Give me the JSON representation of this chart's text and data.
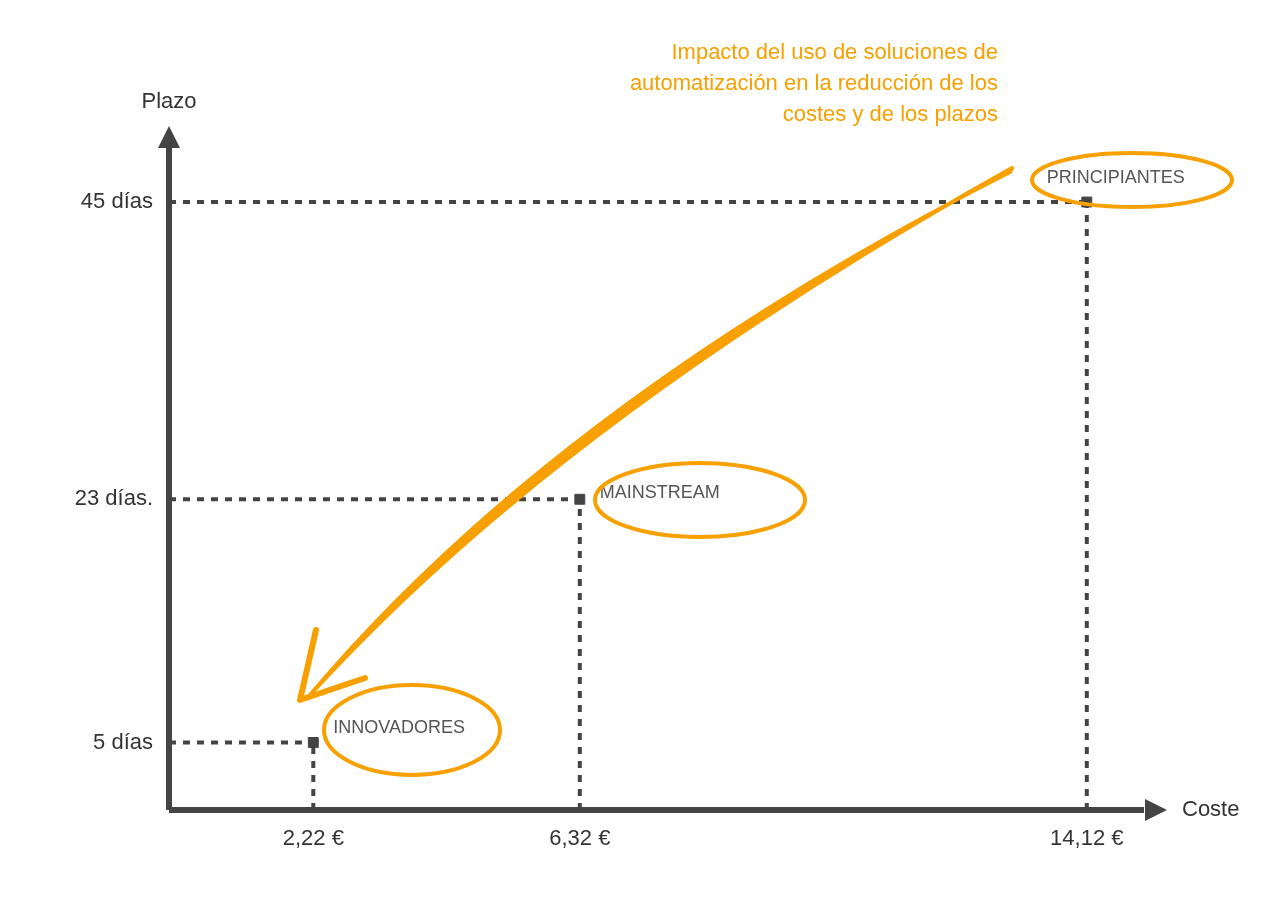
{
  "chart_data": {
    "type": "scatter",
    "title": "Impacto del uso de soluciones de automatización en la reducción de los costes y de los plazos",
    "xlabel": "Coste",
    "ylabel": "Plazo",
    "x": [
      2.22,
      6.32,
      14.12
    ],
    "series": [
      {
        "color": "#444444",
        "values": [
          5,
          23,
          45
        ],
        "value_labels": [
          "INNOVADORES",
          "MAINSTREAM",
          "PRINCIPIANTES"
        ]
      }
    ],
    "xlim": [
      0,
      15
    ],
    "xticks": [
      {
        "value": 2.22,
        "label": "2,22 €"
      },
      {
        "value": 6.32,
        "label": "6,32 €"
      },
      {
        "value": 14.12,
        "label": "14,12 €"
      }
    ],
    "ylim": [
      0,
      49
    ],
    "yticks": [
      {
        "value": 5,
        "label": "5 días"
      },
      {
        "value": 23,
        "label": "23 días."
      },
      {
        "value": 45,
        "label": "45 días"
      }
    ],
    "grid": true,
    "legend": false,
    "marker": "square"
  }
}
